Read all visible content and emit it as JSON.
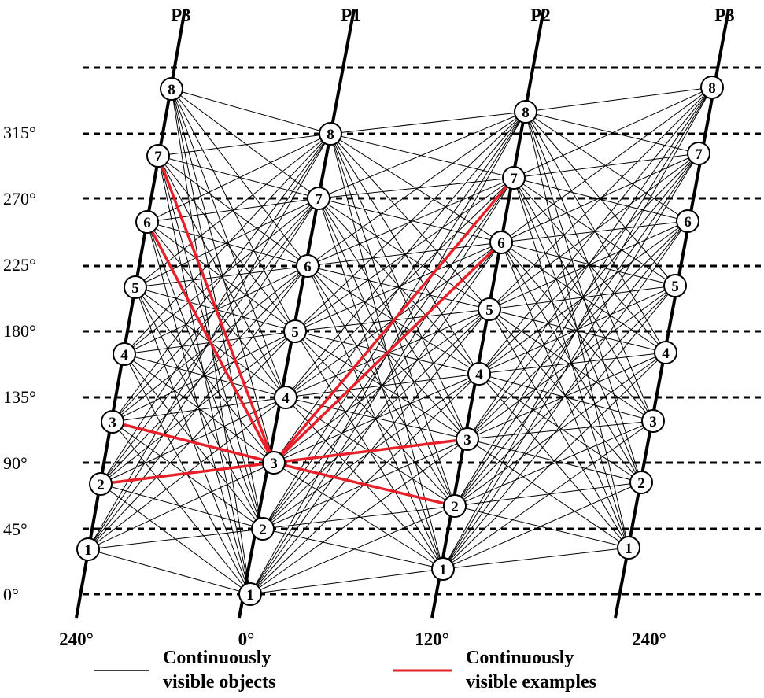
{
  "columns": [
    {
      "label": "P3"
    },
    {
      "label": "P1"
    },
    {
      "label": "P2"
    },
    {
      "label": "P3"
    }
  ],
  "levels": [
    "0°",
    "45°",
    "90°",
    "135°",
    "180°",
    "225°",
    "270°",
    "315°"
  ],
  "phases": [
    "240°",
    "0°",
    "120°",
    "240°"
  ],
  "node_labels": [
    "1",
    "2",
    "3",
    "4",
    "5",
    "6",
    "7",
    "8"
  ],
  "highlight_center": {
    "column": 1,
    "node": 3
  },
  "highlight_targets": [
    {
      "column": 0,
      "node": 2
    },
    {
      "column": 0,
      "node": 3
    },
    {
      "column": 0,
      "node": 6
    },
    {
      "column": 0,
      "node": 7
    },
    {
      "column": 2,
      "node": 2
    },
    {
      "column": 2,
      "node": 3
    },
    {
      "column": 2,
      "node": 6
    },
    {
      "column": 2,
      "node": 7
    }
  ],
  "legend": {
    "black": {
      "label": "Continuously\nvisible objects",
      "color": "#000000"
    },
    "red": {
      "label": "Continuously\nvisible examples",
      "color": "#e8202a"
    }
  }
}
